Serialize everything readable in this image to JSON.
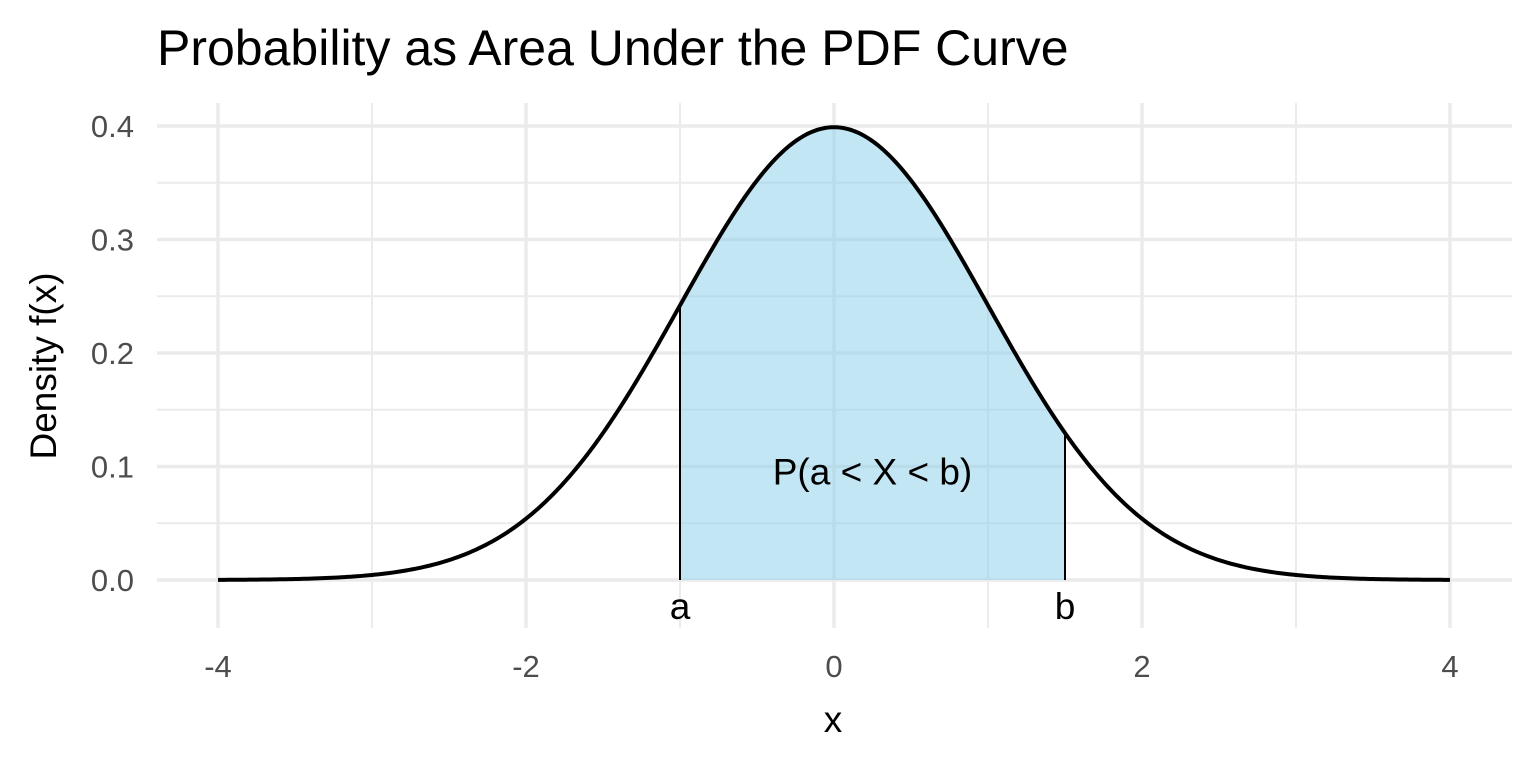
{
  "chart_data": {
    "type": "area",
    "title": "Probability as Area Under the PDF Curve",
    "xlabel": "x",
    "ylabel": "Density f(x)",
    "xlim": [
      -4,
      4
    ],
    "ylim": [
      0,
      0.4
    ],
    "x_ticks": [
      "-4",
      "-2",
      "0",
      "2",
      "4"
    ],
    "y_ticks": [
      "0.0",
      "0.1",
      "0.2",
      "0.3",
      "0.4"
    ],
    "grid": true,
    "curve": {
      "distribution": "standard normal",
      "mean": 0,
      "sd": 1,
      "x": [
        -4,
        -3.5,
        -3,
        -2.5,
        -2,
        -1.5,
        -1,
        -0.5,
        0,
        0.5,
        1,
        1.5,
        2,
        2.5,
        3,
        3.5,
        4
      ],
      "y": [
        0.0001,
        0.0009,
        0.0044,
        0.0175,
        0.054,
        0.1295,
        0.242,
        0.3521,
        0.3989,
        0.3521,
        0.242,
        0.1295,
        0.054,
        0.0175,
        0.0044,
        0.0009,
        0.0001
      ],
      "color": "#000000"
    },
    "shaded_region": {
      "from": -1,
      "to": 1.5,
      "fill": "#87CEEB",
      "opacity": 0.5
    },
    "markers": [
      {
        "label": "a",
        "x": -1
      },
      {
        "label": "b",
        "x": 1.5
      }
    ],
    "annotation": {
      "text": "P(a < X < b)",
      "x": 0.25,
      "y": 0.1
    }
  }
}
